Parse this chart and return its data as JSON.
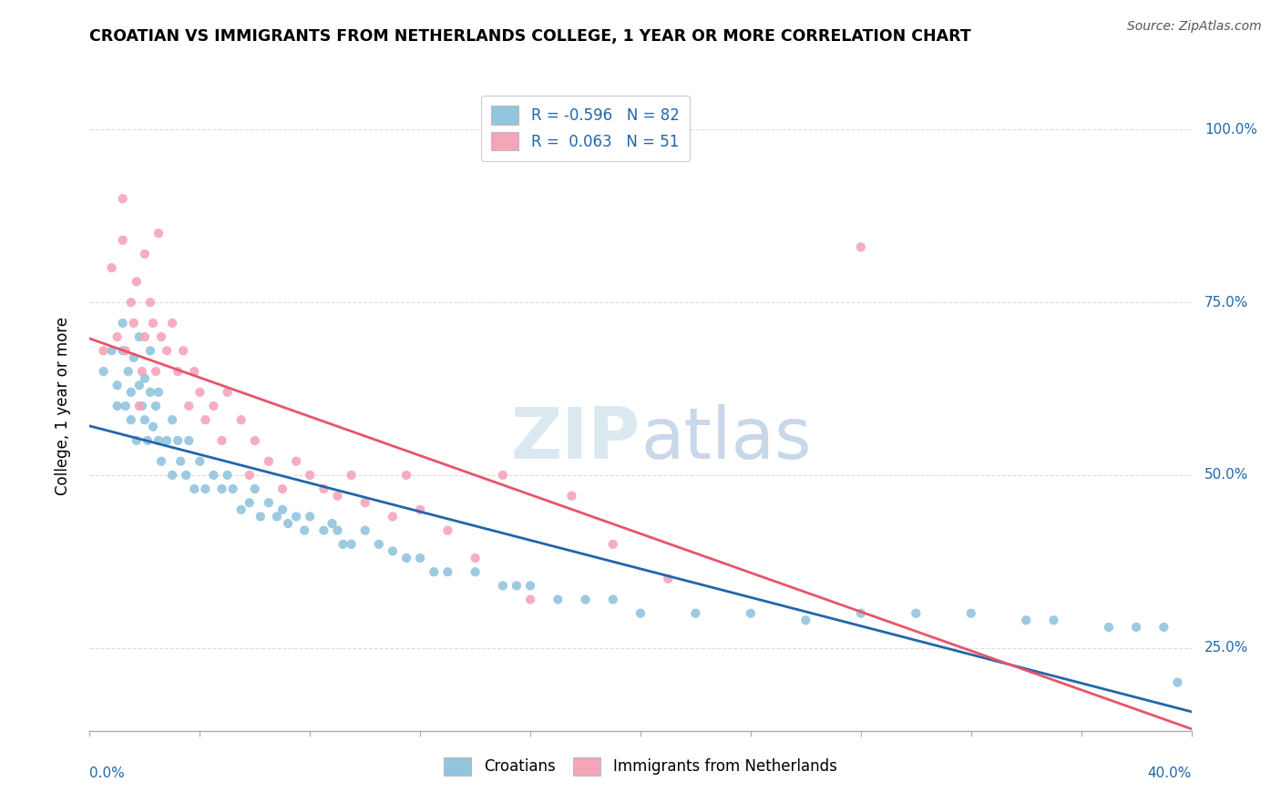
{
  "title": "CROATIAN VS IMMIGRANTS FROM NETHERLANDS COLLEGE, 1 YEAR OR MORE CORRELATION CHART",
  "source": "Source: ZipAtlas.com",
  "ylabel": "College, 1 year or more",
  "y_ticks": [
    0.25,
    0.5,
    0.75,
    1.0
  ],
  "y_tick_labels": [
    "25.0%",
    "50.0%",
    "75.0%",
    "100.0%"
  ],
  "x_range": [
    0.0,
    0.4
  ],
  "y_range": [
    0.13,
    1.07
  ],
  "legend_label1": "R = -0.596   N = 82",
  "legend_label2": "R =  0.063   N = 51",
  "watermark_zip": "ZIP",
  "watermark_atlas": "atlas",
  "blue_color": "#92c5de",
  "pink_color": "#f4a5b8",
  "blue_line_color": "#2166ac",
  "pink_line_color": "#e8546a",
  "blue_scatter_x": [
    0.005,
    0.008,
    0.01,
    0.01,
    0.012,
    0.012,
    0.013,
    0.014,
    0.015,
    0.015,
    0.016,
    0.017,
    0.018,
    0.018,
    0.019,
    0.02,
    0.02,
    0.021,
    0.022,
    0.022,
    0.023,
    0.024,
    0.025,
    0.025,
    0.026,
    0.028,
    0.03,
    0.03,
    0.032,
    0.033,
    0.035,
    0.036,
    0.038,
    0.04,
    0.042,
    0.045,
    0.048,
    0.05,
    0.052,
    0.055,
    0.058,
    0.06,
    0.062,
    0.065,
    0.068,
    0.07,
    0.072,
    0.075,
    0.078,
    0.08,
    0.085,
    0.088,
    0.09,
    0.092,
    0.095,
    0.1,
    0.105,
    0.11,
    0.115,
    0.12,
    0.125,
    0.13,
    0.14,
    0.15,
    0.155,
    0.16,
    0.17,
    0.18,
    0.19,
    0.2,
    0.22,
    0.24,
    0.26,
    0.28,
    0.3,
    0.32,
    0.34,
    0.35,
    0.37,
    0.38,
    0.39,
    0.395
  ],
  "blue_scatter_y": [
    0.65,
    0.68,
    0.63,
    0.6,
    0.68,
    0.72,
    0.6,
    0.65,
    0.62,
    0.58,
    0.67,
    0.55,
    0.63,
    0.7,
    0.6,
    0.58,
    0.64,
    0.55,
    0.62,
    0.68,
    0.57,
    0.6,
    0.55,
    0.62,
    0.52,
    0.55,
    0.58,
    0.5,
    0.55,
    0.52,
    0.5,
    0.55,
    0.48,
    0.52,
    0.48,
    0.5,
    0.48,
    0.5,
    0.48,
    0.45,
    0.46,
    0.48,
    0.44,
    0.46,
    0.44,
    0.45,
    0.43,
    0.44,
    0.42,
    0.44,
    0.42,
    0.43,
    0.42,
    0.4,
    0.4,
    0.42,
    0.4,
    0.39,
    0.38,
    0.38,
    0.36,
    0.36,
    0.36,
    0.34,
    0.34,
    0.34,
    0.32,
    0.32,
    0.32,
    0.3,
    0.3,
    0.3,
    0.29,
    0.3,
    0.3,
    0.3,
    0.29,
    0.29,
    0.28,
    0.28,
    0.28,
    0.2
  ],
  "pink_scatter_x": [
    0.005,
    0.008,
    0.01,
    0.012,
    0.012,
    0.013,
    0.015,
    0.016,
    0.017,
    0.018,
    0.019,
    0.02,
    0.02,
    0.022,
    0.023,
    0.024,
    0.025,
    0.026,
    0.028,
    0.03,
    0.032,
    0.034,
    0.036,
    0.038,
    0.04,
    0.042,
    0.045,
    0.048,
    0.05,
    0.055,
    0.058,
    0.06,
    0.065,
    0.07,
    0.075,
    0.08,
    0.085,
    0.09,
    0.095,
    0.1,
    0.11,
    0.115,
    0.12,
    0.13,
    0.14,
    0.15,
    0.16,
    0.175,
    0.19,
    0.21,
    0.28
  ],
  "pink_scatter_y": [
    0.68,
    0.8,
    0.7,
    0.9,
    0.84,
    0.68,
    0.75,
    0.72,
    0.78,
    0.6,
    0.65,
    0.82,
    0.7,
    0.75,
    0.72,
    0.65,
    0.85,
    0.7,
    0.68,
    0.72,
    0.65,
    0.68,
    0.6,
    0.65,
    0.62,
    0.58,
    0.6,
    0.55,
    0.62,
    0.58,
    0.5,
    0.55,
    0.52,
    0.48,
    0.52,
    0.5,
    0.48,
    0.47,
    0.5,
    0.46,
    0.44,
    0.5,
    0.45,
    0.42,
    0.38,
    0.5,
    0.32,
    0.47,
    0.4,
    0.35,
    0.83
  ]
}
